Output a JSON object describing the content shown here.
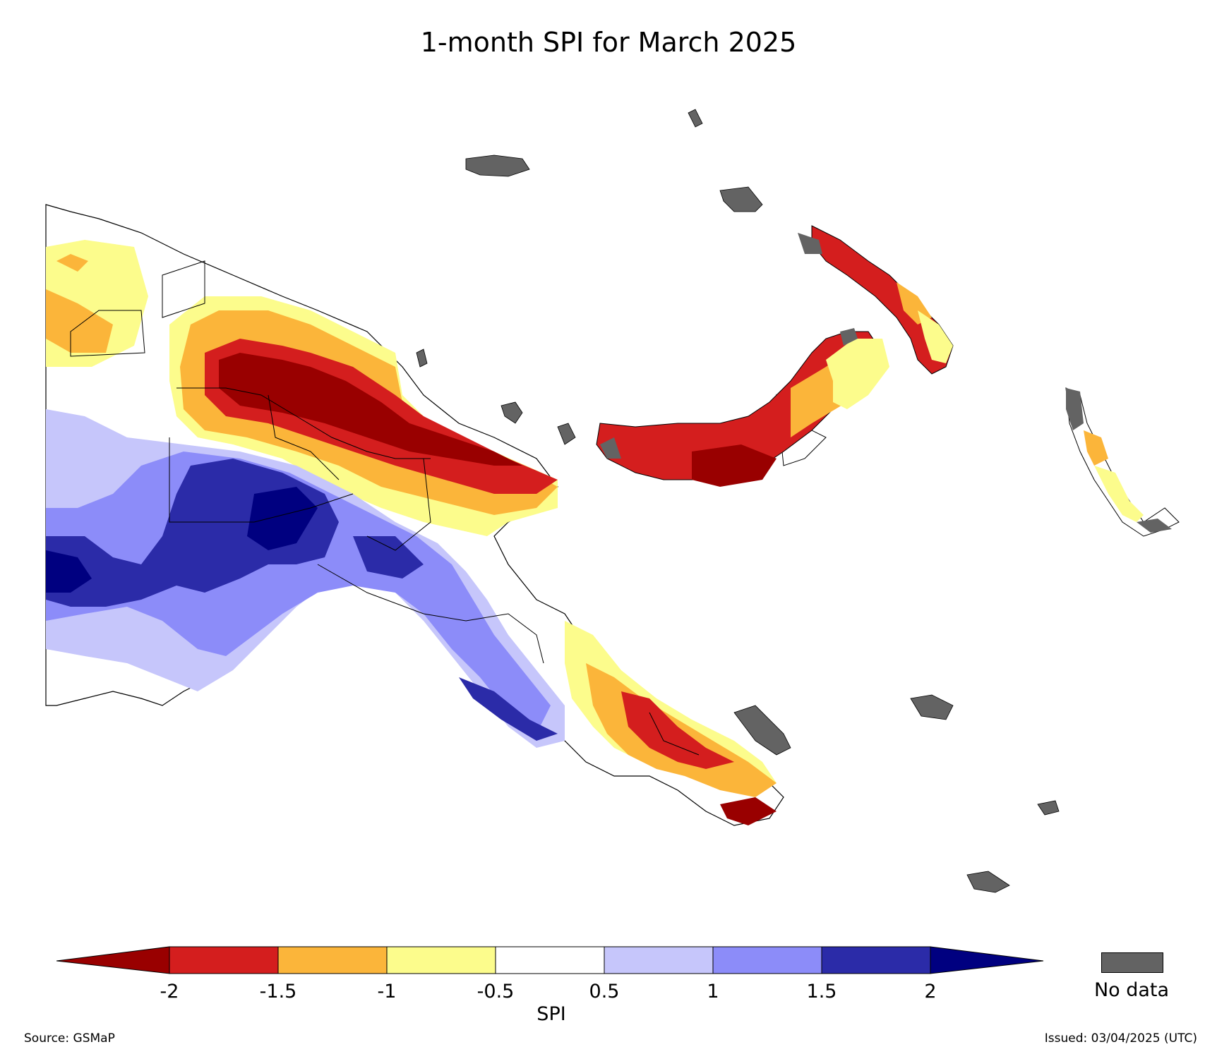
{
  "title": "1-month SPI for March 2025",
  "source": "Source: GSMaP",
  "issued": "Issued: 03/04/2025 (UTC)",
  "colorbar": {
    "label": "SPI",
    "ticks": [
      "-2",
      "-1.5",
      "-1",
      "-0.5",
      "0.5",
      "1",
      "1.5",
      "2"
    ],
    "colors": {
      "below_-2": "#990000",
      "-2_to_-1.5": "#d41e1e",
      "-1.5_to_-1": "#fbb53a",
      "-1_to_-0.5": "#fcfc8c",
      "-0.5_to_0.5": "#ffffff",
      "0.5_to_1": "#c6c6fb",
      "1_to_1.5": "#8c8cf9",
      "1.5_to_2": "#2b2ba8",
      "above_2": "#000080"
    },
    "no_data_label": "No data",
    "no_data_color": "#636363"
  }
}
